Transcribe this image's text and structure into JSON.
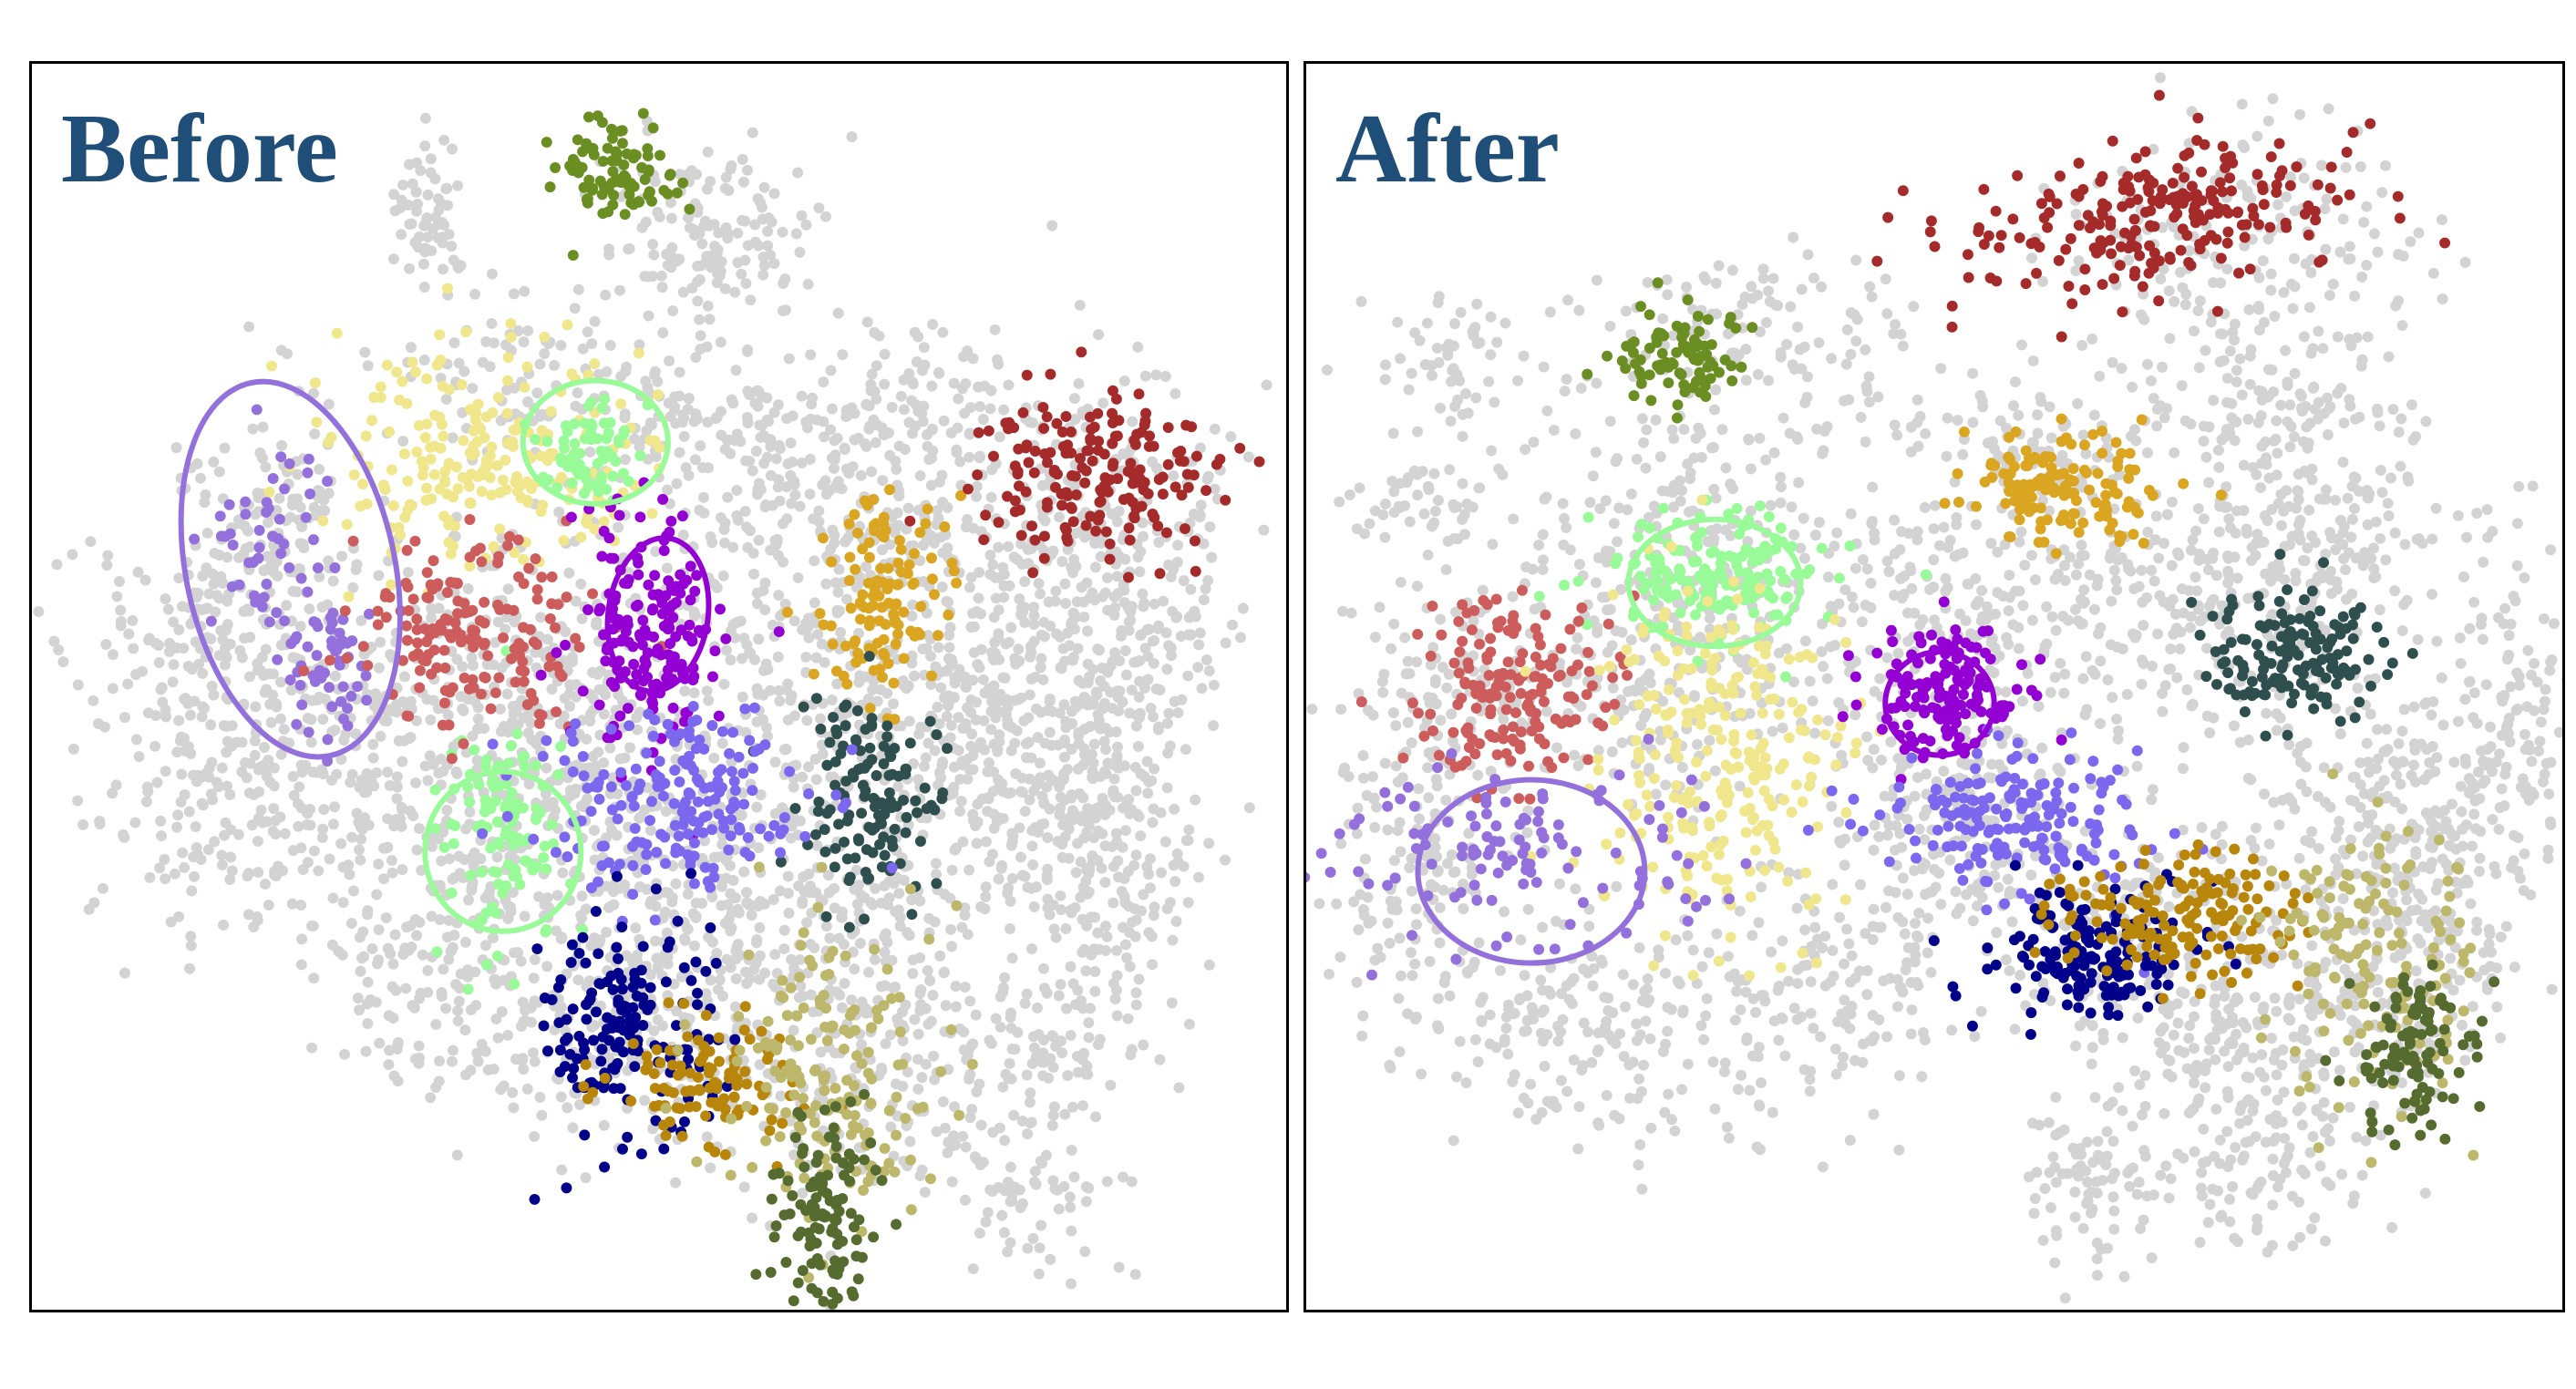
{
  "chart_data": [
    {
      "type": "scatter",
      "title": "Before",
      "xlabel": "",
      "ylabel": "",
      "grid": false,
      "background_color": "#d3d3d3",
      "highlight_ellipses": [
        {
          "cluster": "medium-purple",
          "color": "#9370db"
        },
        {
          "cluster": "pale-green-a",
          "color": "#98fb98"
        },
        {
          "cluster": "dark-violet",
          "color": "#9400d3"
        },
        {
          "cluster": "pale-green-b",
          "color": "#98fb98"
        }
      ],
      "clusters": [
        {
          "id": "olive-drab",
          "color": "#6b8e23"
        },
        {
          "id": "khaki",
          "color": "#f0e68c"
        },
        {
          "id": "pale-green",
          "color": "#98fb98"
        },
        {
          "id": "medium-purple",
          "color": "#9370db"
        },
        {
          "id": "indian-red",
          "color": "#cd5c5c"
        },
        {
          "id": "dark-violet",
          "color": "#9400d3"
        },
        {
          "id": "goldenrod",
          "color": "#daa520"
        },
        {
          "id": "dark-red",
          "color": "#a52a2a"
        },
        {
          "id": "dark-slate-gray",
          "color": "#2f4f4f"
        },
        {
          "id": "medium-slate-blue",
          "color": "#7b68ee"
        },
        {
          "id": "navy",
          "color": "#00008b"
        },
        {
          "id": "dark-goldenrod",
          "color": "#b8860b"
        },
        {
          "id": "dark-khaki",
          "color": "#bdb76b"
        },
        {
          "id": "dark-olive-green",
          "color": "#556b2f"
        }
      ]
    },
    {
      "type": "scatter",
      "title": "After",
      "xlabel": "",
      "ylabel": "",
      "grid": false,
      "background_color": "#d3d3d3",
      "highlight_ellipses": [
        {
          "cluster": "pale-green",
          "color": "#98fb98"
        },
        {
          "cluster": "dark-violet",
          "color": "#9400d3"
        },
        {
          "cluster": "medium-purple",
          "color": "#9370db"
        }
      ],
      "clusters": [
        {
          "id": "dark-red",
          "color": "#a52a2a"
        },
        {
          "id": "olive-drab",
          "color": "#6b8e23"
        },
        {
          "id": "goldenrod",
          "color": "#daa520"
        },
        {
          "id": "pale-green",
          "color": "#98fb98"
        },
        {
          "id": "indian-red",
          "color": "#cd5c5c"
        },
        {
          "id": "khaki",
          "color": "#f0e68c"
        },
        {
          "id": "dark-violet",
          "color": "#9400d3"
        },
        {
          "id": "dark-slate-gray",
          "color": "#2f4f4f"
        },
        {
          "id": "medium-purple",
          "color": "#9370db"
        },
        {
          "id": "medium-slate-blue",
          "color": "#7b68ee"
        },
        {
          "id": "navy",
          "color": "#00008b"
        },
        {
          "id": "dark-goldenrod",
          "color": "#b8860b"
        },
        {
          "id": "dark-khaki",
          "color": "#bdb76b"
        },
        {
          "id": "dark-olive-green",
          "color": "#556b2f"
        }
      ]
    }
  ]
}
